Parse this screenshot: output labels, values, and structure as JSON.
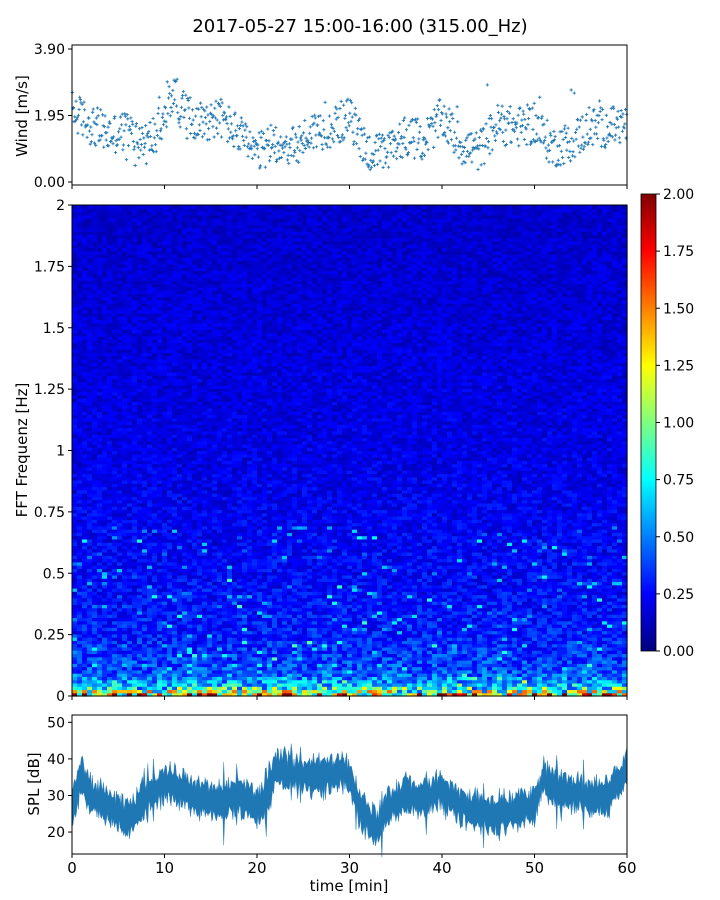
{
  "chart_data": [
    {
      "type": "scatter",
      "title": "2017-05-27 15:00-16:00 (315.00_Hz)",
      "ylabel": "Wind [m/s]",
      "xlabel": "",
      "xlim": [
        0,
        60
      ],
      "ylim": [
        0,
        3.9
      ],
      "yticks": [
        "0.00",
        "1.95",
        "3.90"
      ],
      "xticks": [
        0,
        10,
        20,
        30,
        40,
        50,
        60
      ],
      "x_tick_labels_visible": false,
      "marker": "+",
      "color": "#1f77b4",
      "grid": false,
      "summary_x": [
        0,
        2,
        4,
        6,
        8,
        10,
        11,
        12,
        14,
        16,
        18,
        20,
        22,
        24,
        26,
        28,
        30,
        32,
        34,
        36,
        38,
        40,
        42,
        44,
        46,
        48,
        50,
        52,
        54,
        56,
        58,
        60
      ],
      "summary_y": [
        2.1,
        1.7,
        1.4,
        1.5,
        1.1,
        1.8,
        2.7,
        2.0,
        1.8,
        1.9,
        1.4,
        0.8,
        1.2,
        1.0,
        1.5,
        1.6,
        1.9,
        0.9,
        0.8,
        1.4,
        1.2,
        1.9,
        1.1,
        0.9,
        1.7,
        1.6,
        1.7,
        1.0,
        1.2,
        1.6,
        1.6,
        1.7
      ]
    },
    {
      "type": "heatmap",
      "ylabel": "FFT Frequenz [Hz]",
      "xlabel": "",
      "xlim": [
        0,
        60
      ],
      "ylim": [
        0,
        2
      ],
      "yticks": [
        "0",
        "0.25",
        "0.5",
        "0.75",
        "1",
        "1.25",
        "1.5",
        "1.75",
        "2"
      ],
      "colormap": "jet",
      "colorbar": {
        "vmin": 0,
        "vmax": 2,
        "ticks": [
          "0.00",
          "0.25",
          "0.50",
          "0.75",
          "1.00",
          "1.25",
          "1.50",
          "1.75",
          "2.00"
        ]
      },
      "colors": [
        "#00007f",
        "#0000ff",
        "#007fff",
        "#00ffff",
        "#7fff7f",
        "#ffff00",
        "#ff7f00",
        "#ff0000",
        "#7f0000"
      ],
      "note_levels": {
        "freq": [
          0.0,
          0.02,
          0.05,
          0.1,
          0.25,
          0.5,
          1.0,
          1.5,
          2.0
        ],
        "typical_value": [
          1.6,
          1.0,
          0.6,
          0.4,
          0.3,
          0.25,
          0.2,
          0.18,
          0.15
        ]
      }
    },
    {
      "type": "area",
      "ylabel": "SPL [dB]",
      "xlabel": "time [min]",
      "xlim": [
        0,
        60
      ],
      "ylim": [
        14,
        52
      ],
      "yticks": [
        "20",
        "30",
        "40",
        "50"
      ],
      "xticks": [
        "0",
        "10",
        "20",
        "30",
        "40",
        "50",
        "60"
      ],
      "color": "#1f77b4",
      "summary_x": [
        0,
        1,
        2,
        4,
        6,
        8,
        10,
        12,
        14,
        16,
        18,
        20,
        21,
        22,
        24,
        26,
        28,
        29,
        30,
        31,
        32,
        33,
        34,
        36,
        38,
        40,
        42,
        44,
        45,
        46,
        48,
        50,
        51,
        52,
        54,
        56,
        58,
        60
      ],
      "summary_y": [
        27,
        35,
        30,
        27,
        23,
        30,
        33,
        32,
        29,
        28,
        30,
        27,
        29,
        37,
        36,
        35,
        36,
        37,
        35,
        27,
        24,
        21,
        26,
        30,
        29,
        31,
        27,
        26,
        24,
        25,
        26,
        27,
        35,
        32,
        31,
        29,
        30,
        37
      ]
    }
  ]
}
